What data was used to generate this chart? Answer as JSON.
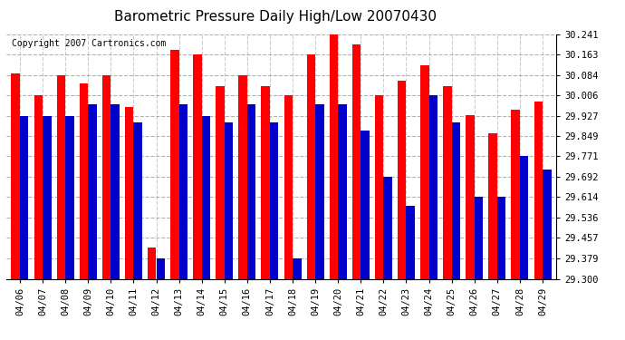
{
  "title": "Barometric Pressure Daily High/Low 20070430",
  "copyright": "Copyright 2007 Cartronics.com",
  "dates": [
    "04/06",
    "04/07",
    "04/08",
    "04/09",
    "04/10",
    "04/11",
    "04/12",
    "04/13",
    "04/14",
    "04/15",
    "04/16",
    "04/17",
    "04/18",
    "04/19",
    "04/20",
    "04/21",
    "04/22",
    "04/23",
    "04/24",
    "04/25",
    "04/26",
    "04/27",
    "04/28",
    "04/29"
  ],
  "highs": [
    30.09,
    30.006,
    30.084,
    30.05,
    30.084,
    29.96,
    29.42,
    30.18,
    30.163,
    30.04,
    30.084,
    30.04,
    30.006,
    30.163,
    30.241,
    30.2,
    30.006,
    30.06,
    30.12,
    30.04,
    29.93,
    29.86,
    29.95,
    29.98
  ],
  "lows": [
    29.927,
    29.927,
    29.927,
    29.97,
    29.97,
    29.9,
    29.379,
    29.97,
    29.927,
    29.9,
    29.97,
    29.9,
    29.379,
    29.97,
    29.97,
    29.87,
    29.692,
    29.58,
    30.006,
    29.9,
    29.614,
    29.614,
    29.771,
    29.72
  ],
  "high_color": "#ff0000",
  "low_color": "#0000cc",
  "bg_color": "#ffffff",
  "plot_bg_color": "#ffffff",
  "ymin": 29.3,
  "ymax": 30.241,
  "yticks": [
    29.3,
    29.379,
    29.457,
    29.536,
    29.614,
    29.692,
    29.771,
    29.849,
    29.927,
    30.006,
    30.084,
    30.163,
    30.241
  ],
  "title_fontsize": 11,
  "copyright_fontsize": 7,
  "bar_width": 0.38
}
